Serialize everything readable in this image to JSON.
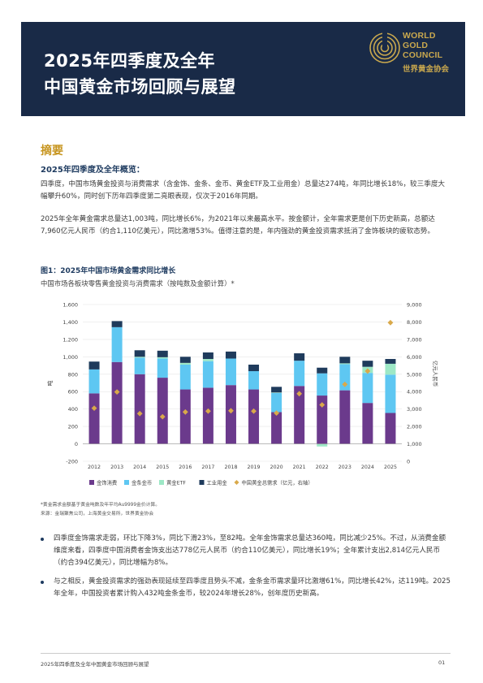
{
  "header": {
    "title_line1": "2025年四季度及全年",
    "title_line2": "中国黄金市场回顾与展望",
    "logo_line1": "WORLD",
    "logo_line2": "GOLD",
    "logo_line3": "COUNCIL",
    "logo_cn": "世界黄金协会",
    "logo_color": "#c9a84e"
  },
  "summary": {
    "title": "摘要",
    "subhead": "2025年四季度及全年概览：",
    "para1": "四季度，中国市场黄金投资与消费需求（含金饰、金条、金币、黄金ETF及工业用金）总量达274吨，年同比增长18%，较三季度大幅攀升60%，同时创下历年四季度第二亮眼表现，仅次于2016年同期。",
    "para2": "2025年全年黄金需求总量达1,003吨，同比增长6%，为2021年以来最高水平。按金额计，全年需求更是创下历史新高，总额达7,960亿元人民币（约合1,110亿美元），同比激增53%。值得注意的是，年内强劲的黄金投资需求抵消了金饰板块的疲软态势。"
  },
  "figure": {
    "title": "图1：2025年中国市场黄金需求同比增长",
    "subtitle": "中国市场各板块零售黄金投资与消费需求（按吨数及金额计算）*",
    "note1": "*黄金需求金额基于黄金吨数及年平均Au9999金价计算。",
    "note2": "来源：金瑞聚焦公司，上海黄金交易所，世界黄金协会"
  },
  "chart_data": {
    "type": "bar",
    "stacked": true,
    "categories": [
      "2012",
      "2013",
      "2014",
      "2015",
      "2016",
      "2017",
      "2018",
      "2019",
      "2020",
      "2021",
      "2022",
      "2023",
      "2024",
      "2025"
    ],
    "series": [
      {
        "name": "金饰消费",
        "color": "#6b3a8c",
        "values": [
          580,
          940,
          800,
          760,
          625,
          645,
          675,
          625,
          365,
          665,
          555,
          615,
          470,
          355
        ]
      },
      {
        "name": "金条金币",
        "color": "#5ec7f2",
        "values": [
          275,
          400,
          190,
          220,
          285,
          305,
          305,
          210,
          220,
          290,
          255,
          300,
          345,
          440
        ]
      },
      {
        "name": "黄金ETF",
        "color": "#9de8c6",
        "values": [
          0,
          0,
          10,
          15,
          20,
          25,
          0,
          0,
          5,
          0,
          -30,
          10,
          70,
          125
        ]
      },
      {
        "name": "工业用金",
        "color": "#1f3b5c",
        "values": [
          90,
          70,
          75,
          75,
          70,
          75,
          80,
          75,
          65,
          85,
          65,
          75,
          70,
          55
        ]
      },
      {
        "name": "中国黄金总需求",
        "color": "#d9a94a",
        "type": "scatter",
        "axis": "right",
        "values": [
          3050,
          3980,
          2740,
          2560,
          2830,
          2880,
          2900,
          2880,
          2770,
          3880,
          3240,
          4420,
          5180,
          7960
        ]
      }
    ],
    "left_axis": {
      "label": "吨",
      "ticks": [
        "1,600",
        "1,400",
        "1,200",
        "1,000",
        "800",
        "600",
        "400",
        "200",
        "0",
        "-200"
      ],
      "ylim": [
        -200,
        1600
      ]
    },
    "right_axis": {
      "label": "亿元人民币",
      "ticks": [
        "9,000",
        "8,000",
        "7,000",
        "6,000",
        "5,000",
        "4,000",
        "3,000",
        "2,000",
        "1,000",
        "0"
      ],
      "ylim": [
        0,
        9000
      ]
    },
    "legend_placement": "bottom",
    "legend_tail": "（亿元，右轴）"
  },
  "bullets": {
    "b1": "四季度金饰需求走弱，环比下降3%，同比下滑23%，至82吨。全年金饰需求总量达360吨，同比减少25%。不过，从消费金额维度来看，四季度中国消费者金饰支出达778亿元人民币（约合110亿美元），同比增长19%；全年累计支出2,814亿元人民币（约合394亿美元），同比增幅为8%。",
    "b2": "与之相反，黄金投资需求的强劲表现延续至四季度且势头不减，金条金币需求量环比激增61%，同比增长42%，达119吨。2025年全年，中国投资者累计购入432吨金条金币，较2024年增长28%，创年度历史新高。"
  },
  "footer": {
    "left": "2025年四季度及全年中国黄金市场回顾与展望",
    "page": "01"
  }
}
